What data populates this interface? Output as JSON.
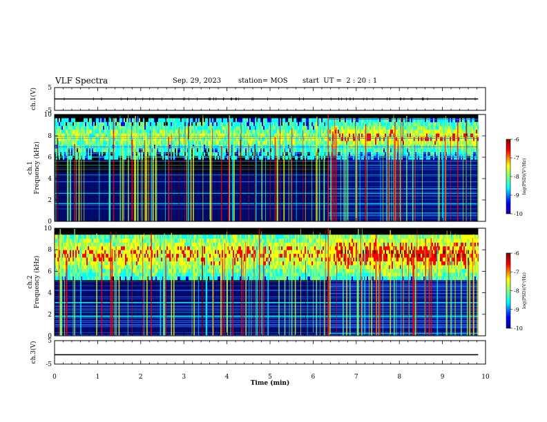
{
  "header": {
    "title": "VLF Spectra",
    "date": "Sep. 29, 2023",
    "station": "station= MOS",
    "start": "start  UT =  2 : 20 : 1"
  },
  "chart_data": [
    {
      "type": "line",
      "panel": "ch1-waveform",
      "ylabel": "ch.1(V)",
      "ylim": [
        -5,
        5
      ],
      "yticks": [
        "5",
        "-5"
      ],
      "xlim": [
        0,
        10
      ],
      "baseline_v": 0
    },
    {
      "type": "heatmap",
      "panel": "ch1-spectrogram",
      "ylabel": "ch.1\nFrequency (kHz)",
      "ylim": [
        0,
        10
      ],
      "yticks": [
        "10",
        "8",
        "6",
        "4",
        "2",
        "0"
      ],
      "xlim": [
        0,
        10
      ],
      "data_end_min": 9.83,
      "transition_min": 6.35,
      "colorbar": {
        "label": "log(PSD)(V²/Hz)",
        "range": [
          -10,
          -6
        ],
        "ticks": [
          "-6",
          "-7",
          "-8",
          "-9",
          "-10"
        ]
      }
    },
    {
      "type": "heatmap",
      "panel": "ch2-spectrogram",
      "ylabel": "ch.2\nFrequency (kHz)",
      "ylim": [
        0,
        10
      ],
      "yticks": [
        "10",
        "8",
        "6",
        "4",
        "2",
        "0"
      ],
      "xlim": [
        0,
        10
      ],
      "data_end_min": 9.83,
      "transition_min": 6.35,
      "colorbar": {
        "label": "log(PSD)(V²/Hz)",
        "range": [
          -10,
          -6
        ],
        "ticks": [
          "-6",
          "-7",
          "-8",
          "-9",
          "-10"
        ]
      }
    },
    {
      "type": "line",
      "panel": "ch3-waveform",
      "ylabel": "ch.3(V)",
      "ylim": [
        -5,
        5
      ],
      "yticks": [
        "5",
        "-5"
      ],
      "xlim": [
        0,
        10
      ],
      "baseline_v": -1,
      "xlabel": "Time (min)",
      "xticks": [
        "0",
        "1",
        "2",
        "3",
        "4",
        "5",
        "6",
        "7",
        "8",
        "9",
        "10"
      ]
    }
  ],
  "colors": {
    "background": "#000000",
    "jet": [
      "#00008f",
      "#0000ff",
      "#00ffff",
      "#7fff7f",
      "#ffff00",
      "#ff0000",
      "#7f0000"
    ]
  }
}
